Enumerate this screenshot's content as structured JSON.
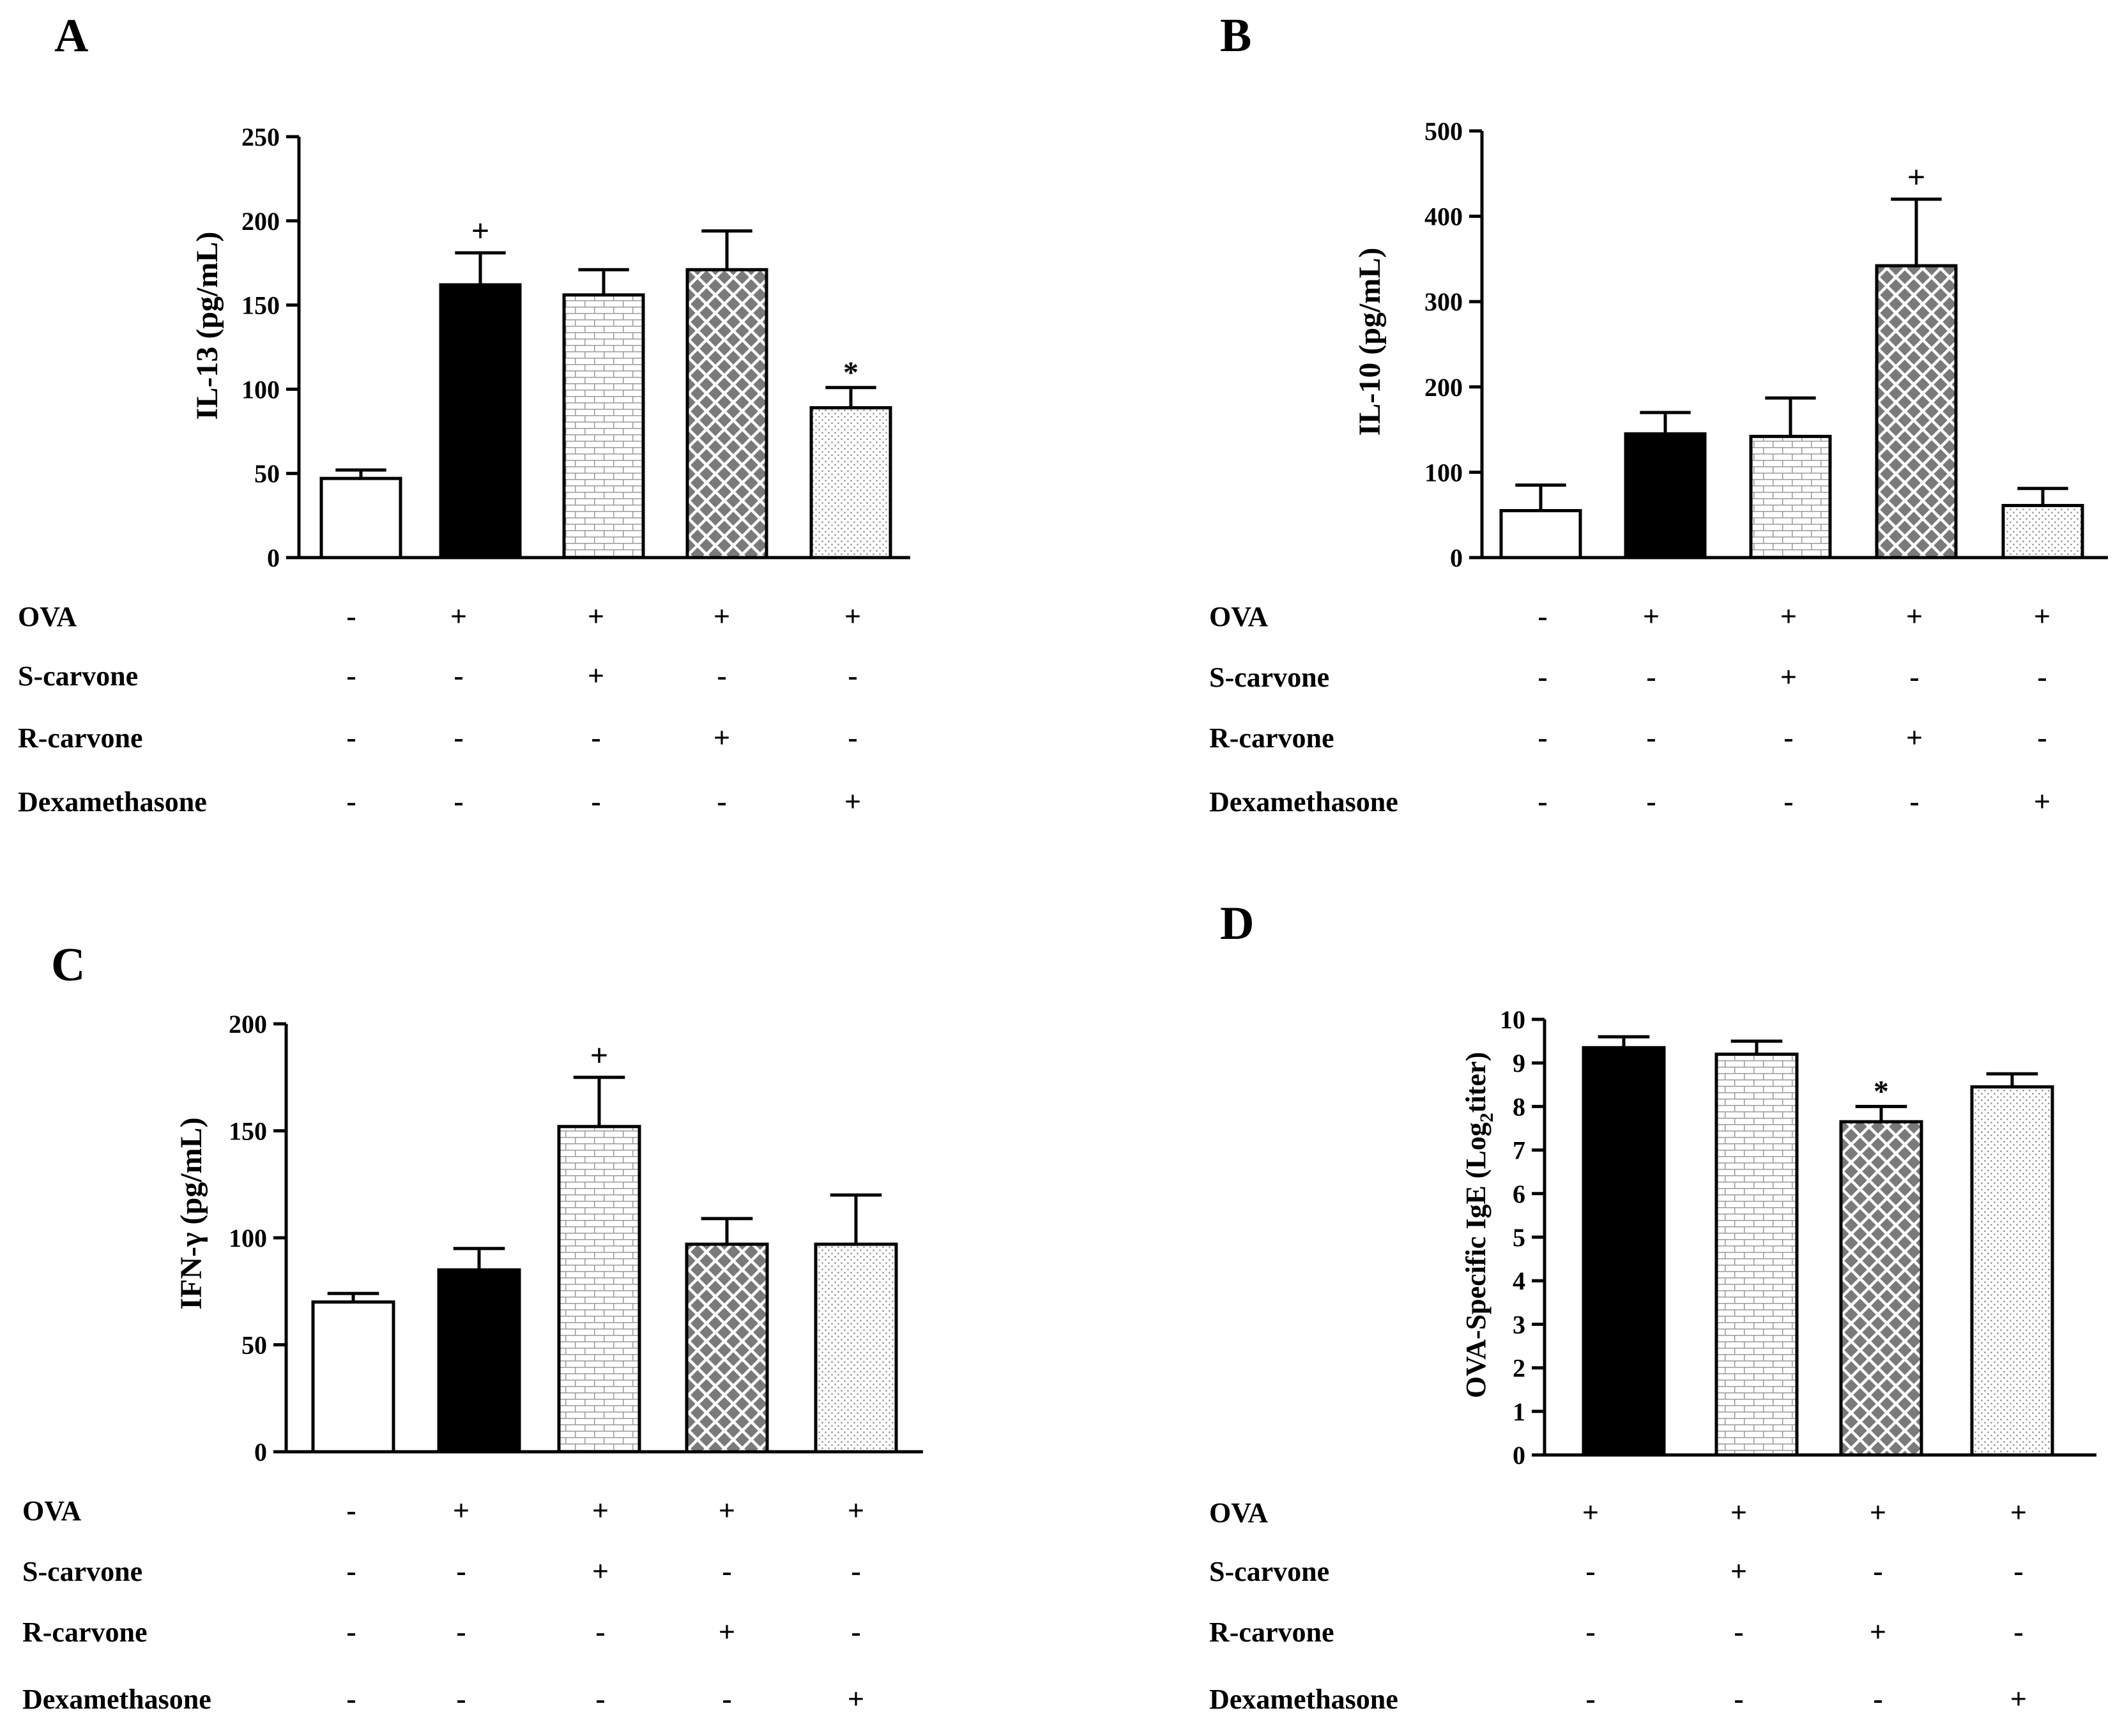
{
  "chart_data": [
    {
      "panel_label": "A",
      "type": "bar",
      "ylabel": "IL-13 (pg/mL)",
      "ylim": [
        0,
        250
      ],
      "yticks": [
        0,
        50,
        100,
        150,
        200,
        250
      ],
      "values": [
        47,
        162,
        156,
        171,
        89
      ],
      "errors": [
        5,
        19,
        15,
        23,
        12
      ],
      "annotations": [
        "",
        "+",
        "",
        "",
        "*"
      ],
      "patterns": [
        "white",
        "black",
        "brick",
        "crosshatch",
        "dots"
      ],
      "treatment_rows": [
        {
          "label": "OVA",
          "signs": [
            "-",
            "+",
            "+",
            "+",
            "+"
          ]
        },
        {
          "label": "S-carvone",
          "signs": [
            "-",
            "-",
            "+",
            "-",
            "-"
          ]
        },
        {
          "label": "R-carvone",
          "signs": [
            "-",
            "-",
            "-",
            "+",
            "-"
          ]
        },
        {
          "label": "Dexamethasone",
          "signs": [
            "-",
            "-",
            "-",
            "-",
            "+"
          ]
        }
      ]
    },
    {
      "panel_label": "B",
      "type": "bar",
      "ylabel": "IL-10 (pg/mL)",
      "ylim": [
        0,
        500
      ],
      "yticks": [
        0,
        100,
        200,
        300,
        400,
        500
      ],
      "values": [
        55,
        145,
        142,
        342,
        61
      ],
      "errors": [
        30,
        25,
        45,
        78,
        20
      ],
      "annotations": [
        "",
        "",
        "",
        "+",
        ""
      ],
      "patterns": [
        "white",
        "black",
        "brick",
        "crosshatch",
        "dots"
      ],
      "treatment_rows": [
        {
          "label": "OVA",
          "signs": [
            "-",
            "+",
            "+",
            "+",
            "+"
          ]
        },
        {
          "label": "S-carvone",
          "signs": [
            "-",
            "-",
            "+",
            "-",
            "-"
          ]
        },
        {
          "label": "R-carvone",
          "signs": [
            "-",
            "-",
            "-",
            "+",
            "-"
          ]
        },
        {
          "label": "Dexamethasone",
          "signs": [
            "-",
            "-",
            "-",
            "-",
            "+"
          ]
        }
      ]
    },
    {
      "panel_label": "C",
      "type": "bar",
      "ylabel": "IFN-γ (pg/mL)",
      "ylim": [
        0,
        200
      ],
      "yticks": [
        0,
        50,
        100,
        150,
        200
      ],
      "values": [
        70,
        85,
        152,
        97,
        97
      ],
      "errors": [
        4,
        10,
        23,
        12,
        23
      ],
      "annotations": [
        "",
        "",
        "+",
        "",
        ""
      ],
      "patterns": [
        "white",
        "black",
        "brick",
        "crosshatch",
        "dots"
      ],
      "treatment_rows": [
        {
          "label": "OVA",
          "signs": [
            "-",
            "+",
            "+",
            "+",
            "+"
          ]
        },
        {
          "label": "S-carvone",
          "signs": [
            "-",
            "-",
            "+",
            "-",
            "-"
          ]
        },
        {
          "label": "R-carvone",
          "signs": [
            "-",
            "-",
            "-",
            "+",
            "-"
          ]
        },
        {
          "label": "Dexamethasone",
          "signs": [
            "-",
            "-",
            "-",
            "-",
            "+"
          ]
        }
      ]
    },
    {
      "panel_label": "D",
      "type": "bar",
      "ylabel_parts": [
        "OVA-Specific IgE (Log",
        "2",
        "titer)"
      ],
      "ylim": [
        0,
        10
      ],
      "yticks": [
        0,
        1,
        2,
        3,
        4,
        5,
        6,
        7,
        8,
        9,
        10
      ],
      "values": [
        9.35,
        9.2,
        7.65,
        8.45
      ],
      "errors": [
        0.25,
        0.3,
        0.35,
        0.3
      ],
      "annotations": [
        "",
        "",
        "*",
        ""
      ],
      "patterns": [
        "black",
        "brick",
        "crosshatch",
        "dots"
      ],
      "treatment_rows": [
        {
          "label": "OVA",
          "signs": [
            "+",
            "+",
            "+",
            "+"
          ]
        },
        {
          "label": "S-carvone",
          "signs": [
            "-",
            "+",
            "-",
            "-"
          ]
        },
        {
          "label": "R-carvone",
          "signs": [
            "-",
            "-",
            "+",
            "-"
          ]
        },
        {
          "label": "Dexamethasone",
          "signs": [
            "-",
            "-",
            "-",
            "+"
          ]
        }
      ]
    }
  ]
}
